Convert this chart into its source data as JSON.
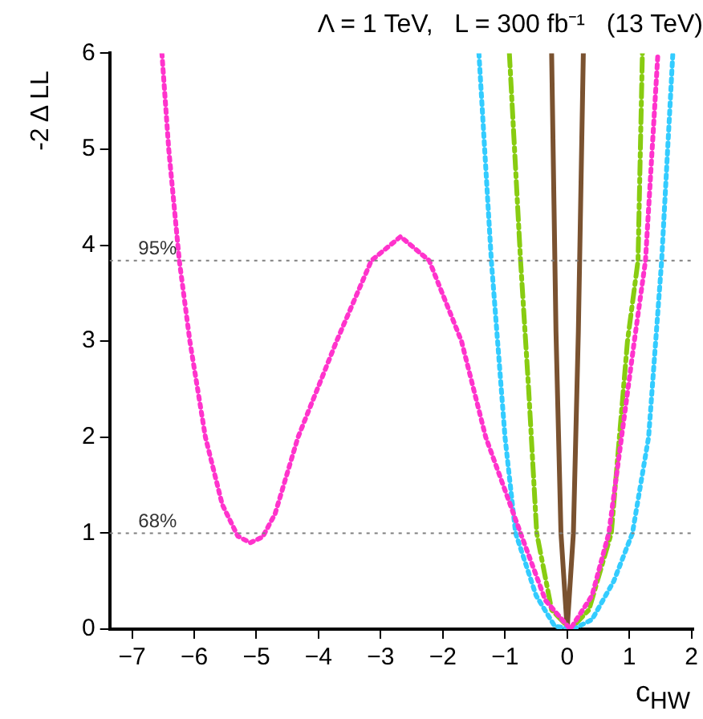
{
  "chart_data": {
    "type": "line",
    "title": "Λ = 1 TeV,   L = 300 fb⁻¹   (13 TeV)",
    "xlabel": "c$_{HW}$",
    "ylabel": "-2 Δ LL",
    "xlim": [
      -7.36,
      2.03
    ],
    "xticks": [
      -7,
      -6,
      -5,
      -4,
      -3,
      -2,
      -1,
      0,
      1,
      2
    ],
    "ylim": [
      0,
      6
    ],
    "yticks": [
      0,
      1,
      2,
      3,
      4,
      5,
      6
    ],
    "grid": false,
    "legend": false,
    "marker": "none",
    "ref_lines": [
      {
        "axis": "y",
        "value": 3.84,
        "color": "#808080",
        "line_style": "dotted"
      },
      {
        "axis": "y",
        "value": 1,
        "color": "#808080",
        "line_style": "dotted"
      }
    ],
    "annotations": [
      {
        "text": "95%",
        "x": -6.9,
        "y": 3.84
      },
      {
        "text": "68%",
        "x": -6.9,
        "y": 1
      }
    ],
    "series": [
      {
        "color": "#ff33cc",
        "line_style": "dotted",
        "x": [
          -6.52,
          -6.41,
          -6.24,
          -6.07,
          -5.82,
          -5.55,
          -5.3,
          -5.1,
          -4.9,
          -4.7,
          -4.33,
          -3.71,
          -3.15,
          -2.68,
          -2.22,
          -1.7,
          -1.31,
          -0.75,
          -0.35,
          0.05,
          0.4,
          0.67,
          1.08,
          1.26,
          1.46
        ],
        "values": [
          6,
          5,
          3.84,
          3,
          2,
          1.3,
          0.97,
          0.9,
          0.96,
          1.2,
          2,
          3,
          3.84,
          4.09,
          3.84,
          3,
          2,
          1,
          0.3,
          0,
          0.35,
          1,
          3,
          3.84,
          6
        ]
      },
      {
        "color": "#33ccff",
        "line_style": "dotted",
        "x": [
          -1.42,
          -1.22,
          -1.0,
          -0.83,
          -0.5,
          -0.2,
          0.1,
          0.4,
          0.75,
          1.05,
          1.31,
          1.52,
          1.7
        ],
        "values": [
          6,
          3.84,
          2,
          1,
          0.35,
          0.03,
          0,
          0.1,
          0.5,
          1,
          2,
          3.84,
          6
        ]
      },
      {
        "color": "#88cc11",
        "line_style": "dashed",
        "x": [
          -0.93,
          -0.75,
          -0.62,
          -0.49,
          -0.25,
          0.05,
          0.35,
          0.71,
          0.97,
          1.14,
          1.21
        ],
        "values": [
          6,
          3.84,
          2.5,
          1,
          0.2,
          0,
          0.2,
          1,
          3,
          3.84,
          6
        ]
      },
      {
        "color": "#7a5230",
        "line_style": "solid",
        "x": [
          -0.25,
          -0.18,
          -0.1,
          0,
          0.1,
          0.18,
          0.26
        ],
        "values": [
          6,
          3.1,
          1,
          0,
          1,
          3.1,
          6
        ]
      }
    ]
  }
}
